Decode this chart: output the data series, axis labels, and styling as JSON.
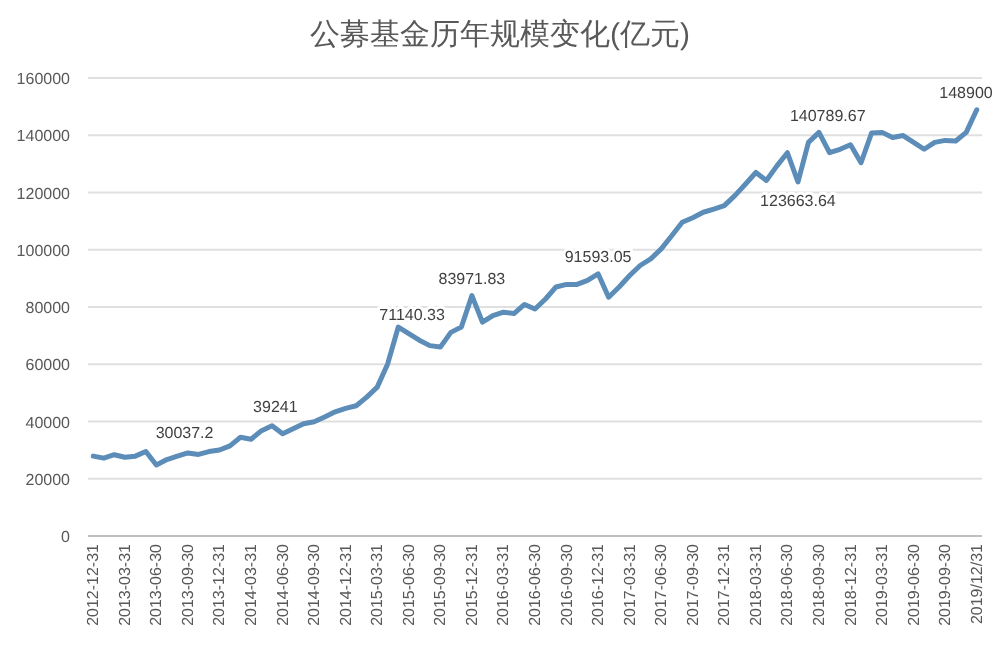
{
  "chart_data": {
    "type": "line",
    "title": "公募基金历年规模变化(亿元)",
    "categories": [
      "2012-12-31",
      null,
      null,
      "2013-03-31",
      null,
      null,
      "2013-06-30",
      null,
      null,
      "2013-09-30",
      null,
      null,
      "2013-12-31",
      null,
      null,
      "2014-03-31",
      null,
      null,
      "2014-06-30",
      null,
      null,
      "2014-09-30",
      null,
      null,
      "2014-12-31",
      null,
      null,
      "2015-03-31",
      null,
      null,
      "2015-06-30",
      null,
      null,
      "2015-09-30",
      null,
      null,
      "2015-12-31",
      null,
      null,
      "2016-03-31",
      null,
      null,
      "2016-06-30",
      null,
      null,
      "2016-09-30",
      null,
      null,
      "2016-12-31",
      null,
      null,
      "2017-03-31",
      null,
      null,
      "2017-06-30",
      null,
      null,
      "2017-09-30",
      null,
      null,
      "2017-12-31",
      null,
      null,
      "2018-03-31",
      null,
      null,
      "2018-06-30",
      null,
      null,
      "2018-09-30",
      null,
      null,
      "2018-12-31",
      null,
      null,
      "2019-03-31",
      null,
      null,
      "2019-06-30",
      null,
      null,
      "2019-09-30",
      null,
      null,
      "2019/12/31"
    ],
    "series": [
      {
        "color": "#5b8db8",
        "values": [
          27900,
          27200,
          28400,
          27500,
          27900,
          29500,
          24800,
          26700,
          27900,
          29000,
          28500,
          29500,
          30037.2,
          31500,
          34500,
          33800,
          36800,
          38500,
          35700,
          37500,
          39241,
          39900,
          41600,
          43400,
          44600,
          45500,
          48500,
          52000,
          60200,
          73000,
          70700,
          68400,
          66500,
          66000,
          71140.33,
          73000,
          83971.83,
          74700,
          77000,
          78200,
          77700,
          80900,
          79300,
          82800,
          87000,
          87900,
          87900,
          89300,
          91593.05,
          83400,
          87000,
          91000,
          94500,
          96800,
          100300,
          104900,
          109600,
          111200,
          113100,
          114200,
          115400,
          118900,
          122900,
          127000,
          124200,
          129300,
          133900,
          123663.64,
          137500,
          141000,
          133900,
          135100,
          136700,
          130400,
          140789.67,
          141000,
          139200,
          139900,
          137500,
          135100,
          137500,
          138200,
          138000,
          141000,
          148900
        ],
        "value_labels": [
          null,
          null,
          null,
          null,
          null,
          null,
          null,
          null,
          null,
          null,
          null,
          null,
          "30037.2",
          null,
          null,
          null,
          null,
          null,
          null,
          null,
          "39241",
          null,
          null,
          null,
          null,
          null,
          null,
          null,
          null,
          null,
          null,
          null,
          null,
          null,
          "71140.33",
          null,
          "83971.83",
          null,
          null,
          null,
          null,
          null,
          null,
          null,
          null,
          null,
          null,
          null,
          "91593.05",
          null,
          null,
          null,
          null,
          null,
          null,
          null,
          null,
          null,
          null,
          null,
          null,
          null,
          null,
          null,
          null,
          null,
          null,
          "123663.64",
          null,
          null,
          null,
          null,
          null,
          null,
          "140789.67",
          null,
          null,
          null,
          null,
          null,
          null,
          null,
          null,
          null,
          "148900"
        ]
      }
    ],
    "ylim": [
      0,
      160000
    ],
    "yticks": [
      0,
      20000,
      40000,
      60000,
      80000,
      100000,
      120000,
      140000,
      160000
    ],
    "grid": "y",
    "marker": "none",
    "line_style": "solid"
  }
}
